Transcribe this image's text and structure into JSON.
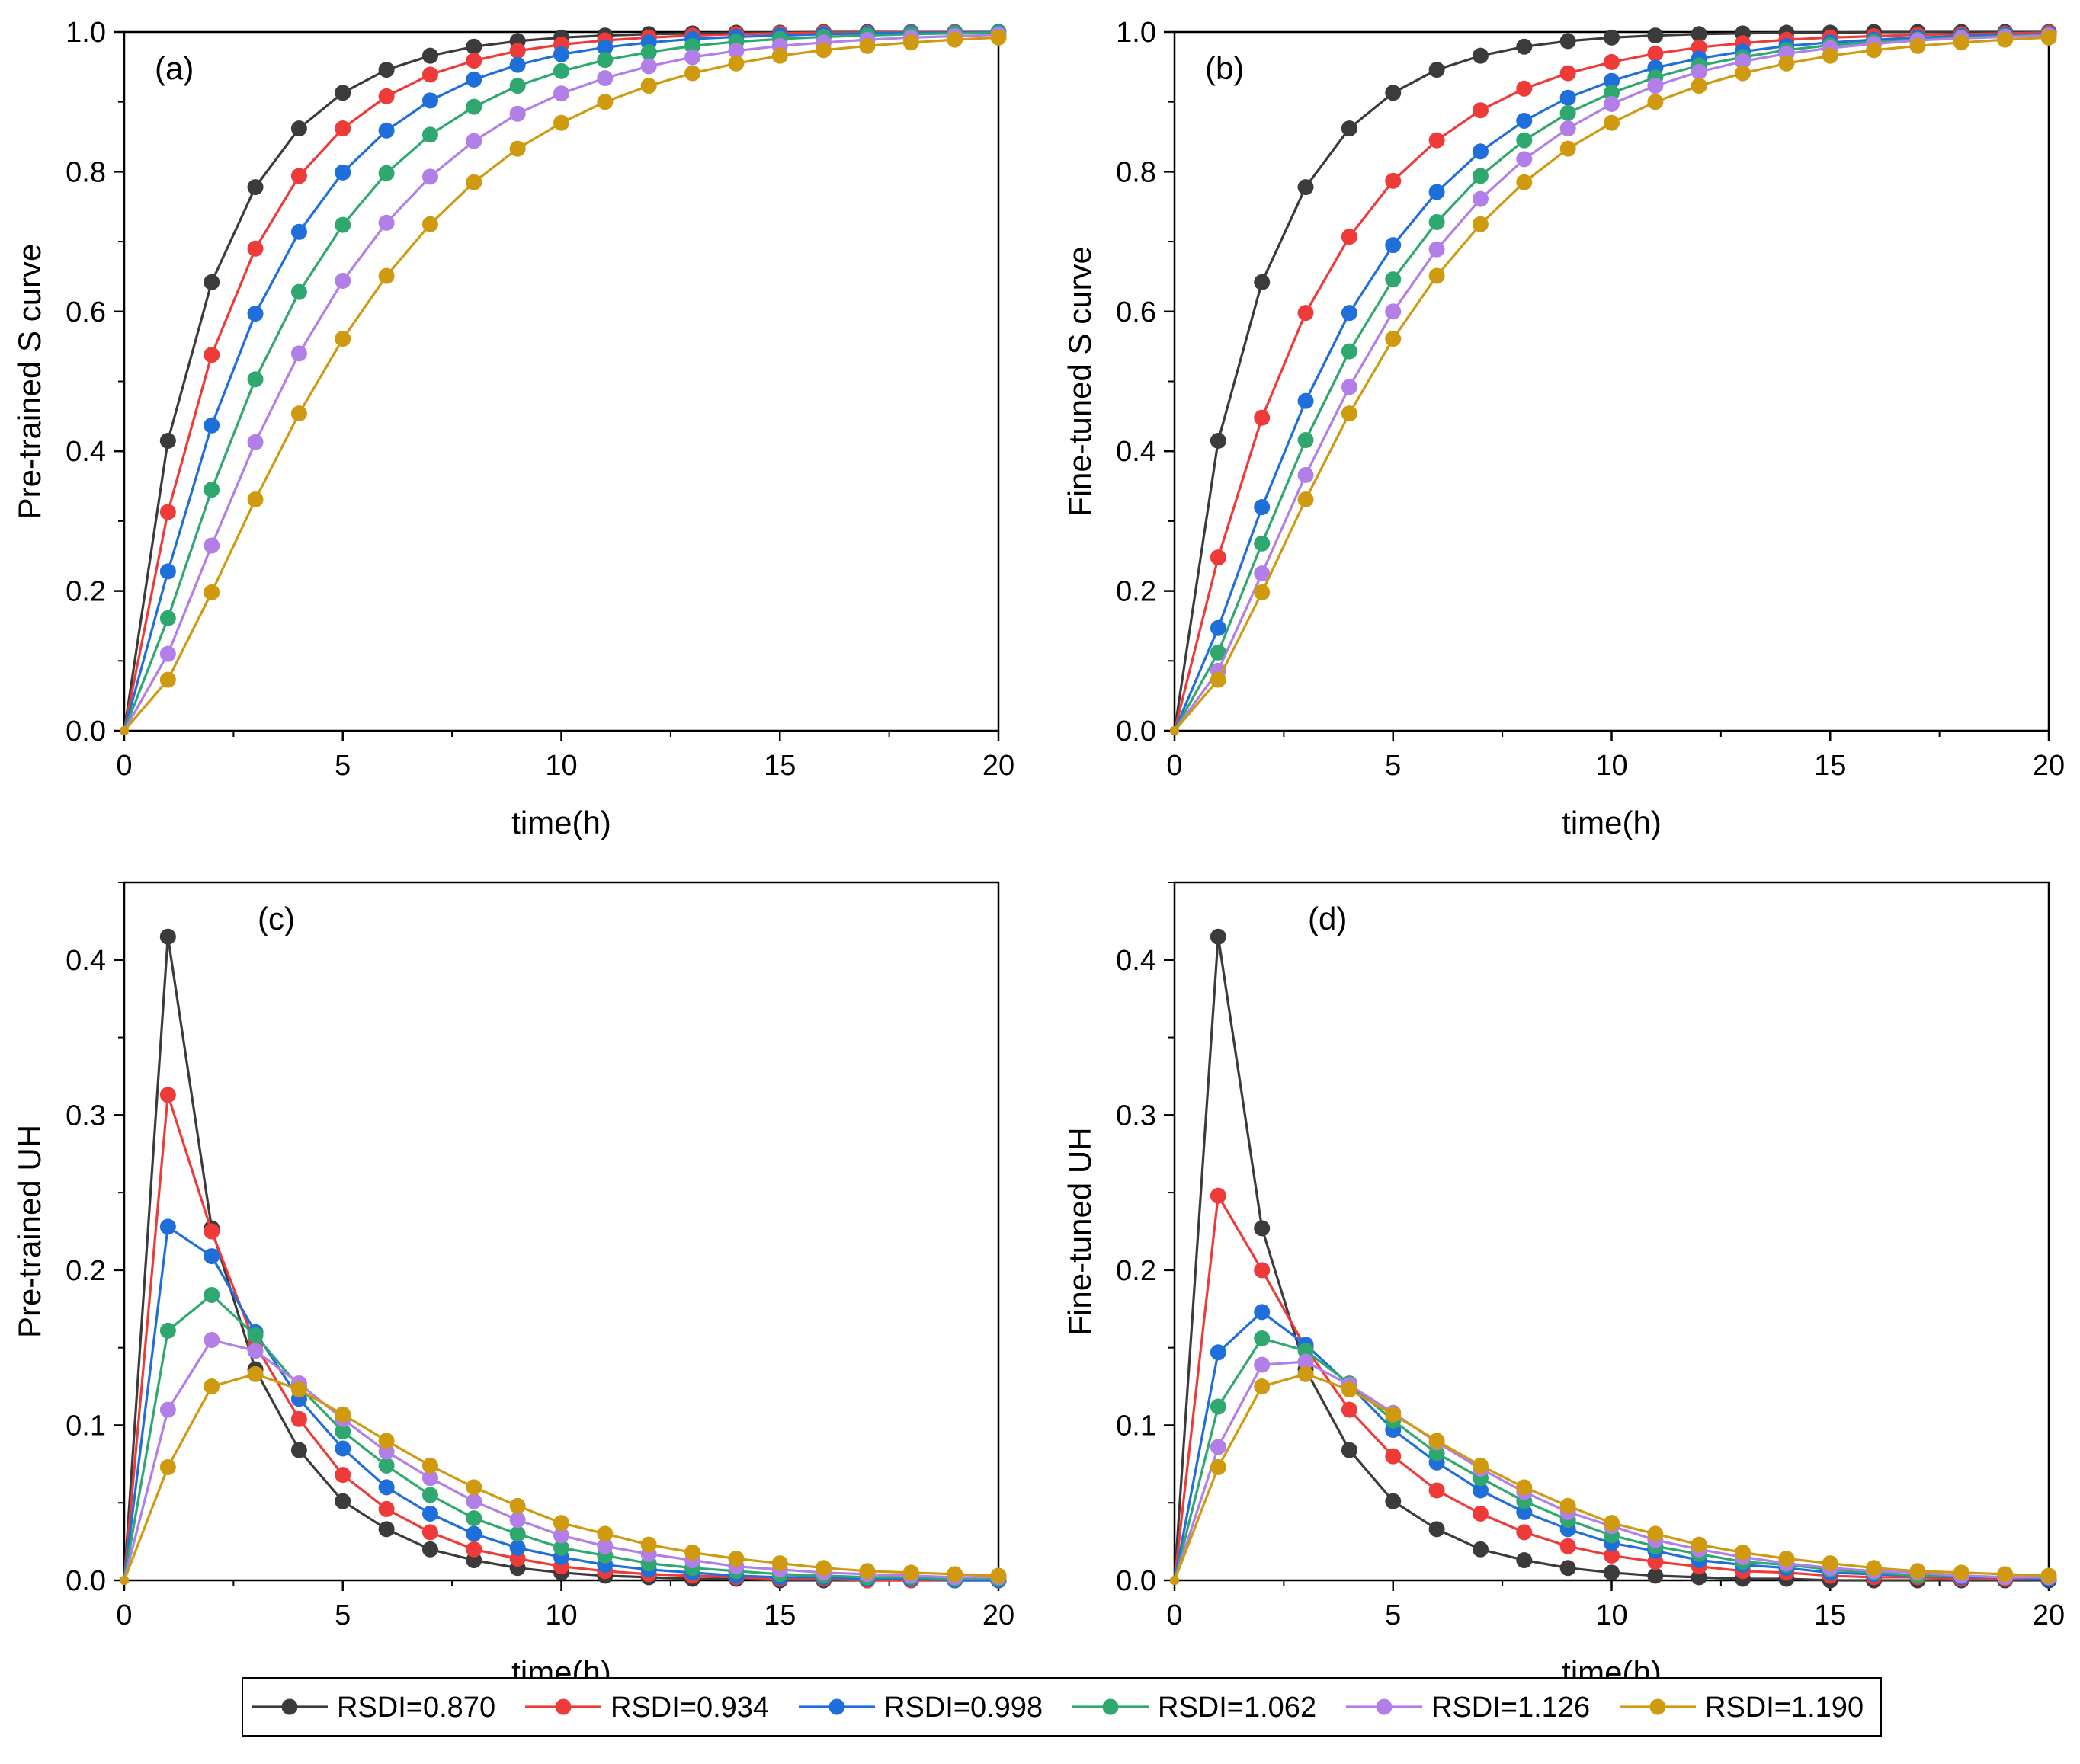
{
  "chart_data": [
    {
      "type": "line",
      "panel_label": "(a)",
      "xlabel": "time(h)",
      "ylabel": "Pre-trained S curve",
      "xlim": [
        0,
        20
      ],
      "ylim": [
        0,
        1.0
      ],
      "x_ticks": [
        "0",
        "5",
        "10",
        "15",
        "20"
      ],
      "y_ticks": [
        "0.0",
        "0.2",
        "0.4",
        "0.6",
        "0.8",
        "1.0"
      ],
      "x": [
        0,
        1,
        2,
        3,
        4,
        5,
        6,
        7,
        8,
        9,
        10,
        11,
        12,
        13,
        14,
        15,
        16,
        17,
        18,
        19,
        20
      ],
      "series": [
        {
          "name": "RSDI=0.870",
          "values": [
            0,
            0.415,
            0.642,
            0.778,
            0.862,
            0.913,
            0.946,
            0.966,
            0.979,
            0.987,
            0.992,
            0.995,
            0.997,
            0.998,
            0.999,
            0.999,
            1.0,
            1.0,
            1.0,
            1.0,
            1.0
          ]
        },
        {
          "name": "RSDI=0.934",
          "values": [
            0,
            0.313,
            0.538,
            0.69,
            0.794,
            0.862,
            0.908,
            0.939,
            0.959,
            0.973,
            0.982,
            0.988,
            0.992,
            0.995,
            0.997,
            0.998,
            0.999,
            0.999,
            1.0,
            1.0,
            1.0
          ]
        },
        {
          "name": "RSDI=0.998",
          "values": [
            0,
            0.228,
            0.437,
            0.597,
            0.714,
            0.799,
            0.859,
            0.902,
            0.932,
            0.953,
            0.968,
            0.978,
            0.985,
            0.99,
            0.993,
            0.995,
            0.997,
            0.998,
            0.999,
            0.999,
            1.0
          ]
        },
        {
          "name": "RSDI=1.062",
          "values": [
            0,
            0.161,
            0.345,
            0.503,
            0.628,
            0.724,
            0.798,
            0.853,
            0.893,
            0.923,
            0.944,
            0.96,
            0.971,
            0.98,
            0.986,
            0.99,
            0.993,
            0.995,
            0.997,
            0.998,
            0.999
          ]
        },
        {
          "name": "RSDI=1.126",
          "values": [
            0,
            0.11,
            0.265,
            0.413,
            0.54,
            0.644,
            0.727,
            0.793,
            0.844,
            0.883,
            0.912,
            0.934,
            0.951,
            0.964,
            0.973,
            0.98,
            0.985,
            0.989,
            0.992,
            0.994,
            0.996
          ]
        },
        {
          "name": "RSDI=1.190",
          "values": [
            0,
            0.073,
            0.198,
            0.331,
            0.454,
            0.561,
            0.651,
            0.725,
            0.785,
            0.833,
            0.87,
            0.9,
            0.923,
            0.941,
            0.955,
            0.966,
            0.974,
            0.98,
            0.985,
            0.989,
            0.992
          ]
        }
      ]
    },
    {
      "type": "line",
      "panel_label": "(b)",
      "xlabel": "time(h)",
      "ylabel": "Fine-tuned S curve",
      "xlim": [
        0,
        20
      ],
      "ylim": [
        0,
        1.0
      ],
      "x_ticks": [
        "0",
        "5",
        "10",
        "15",
        "20"
      ],
      "y_ticks": [
        "0.0",
        "0.2",
        "0.4",
        "0.6",
        "0.8",
        "1.0"
      ],
      "x": [
        0,
        1,
        2,
        3,
        4,
        5,
        6,
        7,
        8,
        9,
        10,
        11,
        12,
        13,
        14,
        15,
        16,
        17,
        18,
        19,
        20
      ],
      "series": [
        {
          "name": "RSDI=0.870",
          "values": [
            0,
            0.415,
            0.642,
            0.778,
            0.862,
            0.913,
            0.946,
            0.966,
            0.979,
            0.987,
            0.992,
            0.995,
            0.997,
            0.998,
            0.999,
            0.999,
            1.0,
            1.0,
            1.0,
            1.0,
            1.0
          ]
        },
        {
          "name": "RSDI=0.934",
          "values": [
            0,
            0.248,
            0.448,
            0.598,
            0.707,
            0.787,
            0.845,
            0.888,
            0.919,
            0.941,
            0.957,
            0.969,
            0.978,
            0.984,
            0.989,
            0.992,
            0.994,
            0.996,
            0.997,
            0.998,
            0.999
          ]
        },
        {
          "name": "RSDI=0.998",
          "values": [
            0,
            0.147,
            0.32,
            0.472,
            0.598,
            0.695,
            0.771,
            0.829,
            0.873,
            0.906,
            0.93,
            0.949,
            0.962,
            0.972,
            0.98,
            0.985,
            0.989,
            0.992,
            0.994,
            0.996,
            0.997
          ]
        },
        {
          "name": "RSDI=1.062",
          "values": [
            0,
            0.112,
            0.268,
            0.416,
            0.543,
            0.646,
            0.728,
            0.794,
            0.845,
            0.884,
            0.913,
            0.935,
            0.952,
            0.964,
            0.974,
            0.981,
            0.986,
            0.989,
            0.992,
            0.994,
            0.996
          ]
        },
        {
          "name": "RSDI=1.126",
          "values": [
            0,
            0.086,
            0.225,
            0.366,
            0.492,
            0.6,
            0.689,
            0.761,
            0.818,
            0.862,
            0.897,
            0.923,
            0.943,
            0.958,
            0.969,
            0.977,
            0.983,
            0.988,
            0.991,
            0.993,
            0.995
          ]
        },
        {
          "name": "RSDI=1.190",
          "values": [
            0,
            0.073,
            0.198,
            0.331,
            0.454,
            0.561,
            0.651,
            0.725,
            0.785,
            0.833,
            0.87,
            0.9,
            0.923,
            0.941,
            0.955,
            0.966,
            0.974,
            0.98,
            0.985,
            0.989,
            0.992
          ]
        }
      ]
    },
    {
      "type": "line",
      "panel_label": "(c)",
      "xlabel": "time(h)",
      "ylabel": "Pre-trained UH",
      "xlim": [
        0,
        20
      ],
      "ylim": [
        0,
        0.45
      ],
      "x_ticks": [
        "0",
        "5",
        "10",
        "15",
        "20"
      ],
      "y_ticks": [
        "0.0",
        "0.1",
        "0.2",
        "0.3",
        "0.4"
      ],
      "x": [
        0,
        1,
        2,
        3,
        4,
        5,
        6,
        7,
        8,
        9,
        10,
        11,
        12,
        13,
        14,
        15,
        16,
        17,
        18,
        19,
        20
      ],
      "series": [
        {
          "name": "RSDI=0.870",
          "values": [
            0,
            0.415,
            0.227,
            0.136,
            0.084,
            0.051,
            0.033,
            0.02,
            0.013,
            0.008,
            0.005,
            0.003,
            0.002,
            0.001,
            0.001,
            0.0,
            0.0,
            0.0,
            0.0,
            0.0,
            0.0
          ]
        },
        {
          "name": "RSDI=0.934",
          "values": [
            0,
            0.313,
            0.225,
            0.152,
            0.104,
            0.068,
            0.046,
            0.031,
            0.02,
            0.014,
            0.009,
            0.006,
            0.004,
            0.003,
            0.002,
            0.001,
            0.001,
            0.0,
            0.0,
            0.0,
            0.0
          ]
        },
        {
          "name": "RSDI=0.998",
          "values": [
            0,
            0.228,
            0.209,
            0.16,
            0.117,
            0.085,
            0.06,
            0.043,
            0.03,
            0.021,
            0.015,
            0.01,
            0.007,
            0.005,
            0.003,
            0.002,
            0.002,
            0.001,
            0.001,
            0.0,
            0.0
          ]
        },
        {
          "name": "RSDI=1.062",
          "values": [
            0,
            0.161,
            0.184,
            0.158,
            0.125,
            0.096,
            0.074,
            0.055,
            0.04,
            0.03,
            0.021,
            0.016,
            0.011,
            0.008,
            0.006,
            0.004,
            0.003,
            0.002,
            0.002,
            0.001,
            0.001
          ]
        },
        {
          "name": "RSDI=1.126",
          "values": [
            0,
            0.11,
            0.155,
            0.148,
            0.127,
            0.104,
            0.083,
            0.066,
            0.051,
            0.039,
            0.029,
            0.022,
            0.017,
            0.013,
            0.009,
            0.007,
            0.005,
            0.004,
            0.003,
            0.002,
            0.002
          ]
        },
        {
          "name": "RSDI=1.190",
          "values": [
            0,
            0.073,
            0.125,
            0.133,
            0.123,
            0.107,
            0.09,
            0.074,
            0.06,
            0.048,
            0.037,
            0.03,
            0.023,
            0.018,
            0.014,
            0.011,
            0.008,
            0.006,
            0.005,
            0.004,
            0.003
          ]
        }
      ]
    },
    {
      "type": "line",
      "panel_label": "(d)",
      "xlabel": "time(h)",
      "ylabel": "Fine-tuned UH",
      "xlim": [
        0,
        20
      ],
      "ylim": [
        0,
        0.45
      ],
      "x_ticks": [
        "0",
        "5",
        "10",
        "15",
        "20"
      ],
      "y_ticks": [
        "0.0",
        "0.1",
        "0.2",
        "0.3",
        "0.4"
      ],
      "x": [
        0,
        1,
        2,
        3,
        4,
        5,
        6,
        7,
        8,
        9,
        10,
        11,
        12,
        13,
        14,
        15,
        16,
        17,
        18,
        19,
        20
      ],
      "series": [
        {
          "name": "RSDI=0.870",
          "values": [
            0,
            0.415,
            0.227,
            0.136,
            0.084,
            0.051,
            0.033,
            0.02,
            0.013,
            0.008,
            0.005,
            0.003,
            0.002,
            0.001,
            0.001,
            0.0,
            0.0,
            0.0,
            0.0,
            0.0,
            0.0
          ]
        },
        {
          "name": "RSDI=0.934",
          "values": [
            0,
            0.248,
            0.2,
            0.15,
            0.11,
            0.08,
            0.058,
            0.043,
            0.031,
            0.022,
            0.016,
            0.012,
            0.009,
            0.006,
            0.005,
            0.003,
            0.002,
            0.002,
            0.001,
            0.001,
            0.001
          ]
        },
        {
          "name": "RSDI=0.998",
          "values": [
            0,
            0.147,
            0.173,
            0.152,
            0.126,
            0.097,
            0.076,
            0.058,
            0.044,
            0.033,
            0.024,
            0.019,
            0.013,
            0.01,
            0.008,
            0.005,
            0.004,
            0.003,
            0.002,
            0.002,
            0.001
          ]
        },
        {
          "name": "RSDI=1.062",
          "values": [
            0,
            0.112,
            0.156,
            0.148,
            0.127,
            0.103,
            0.082,
            0.066,
            0.051,
            0.039,
            0.029,
            0.022,
            0.017,
            0.012,
            0.01,
            0.007,
            0.005,
            0.003,
            0.003,
            0.002,
            0.002
          ]
        },
        {
          "name": "RSDI=1.126",
          "values": [
            0,
            0.086,
            0.139,
            0.141,
            0.126,
            0.108,
            0.089,
            0.072,
            0.057,
            0.044,
            0.035,
            0.026,
            0.02,
            0.015,
            0.011,
            0.008,
            0.006,
            0.005,
            0.003,
            0.002,
            0.002
          ]
        },
        {
          "name": "RSDI=1.190",
          "values": [
            0,
            0.073,
            0.125,
            0.133,
            0.123,
            0.107,
            0.09,
            0.074,
            0.06,
            0.048,
            0.037,
            0.03,
            0.023,
            0.018,
            0.014,
            0.011,
            0.008,
            0.006,
            0.005,
            0.004,
            0.003
          ]
        }
      ]
    }
  ],
  "legend": {
    "entries": [
      "RSDI=0.870",
      "RSDI=0.934",
      "RSDI=0.998",
      "RSDI=1.062",
      "RSDI=1.126",
      "RSDI=1.190"
    ],
    "colors": [
      "#3b3b3b",
      "#ef3a3a",
      "#1f6fdb",
      "#2ea86e",
      "#b27ee8",
      "#d09a10"
    ],
    "placement": "bottom-center"
  }
}
